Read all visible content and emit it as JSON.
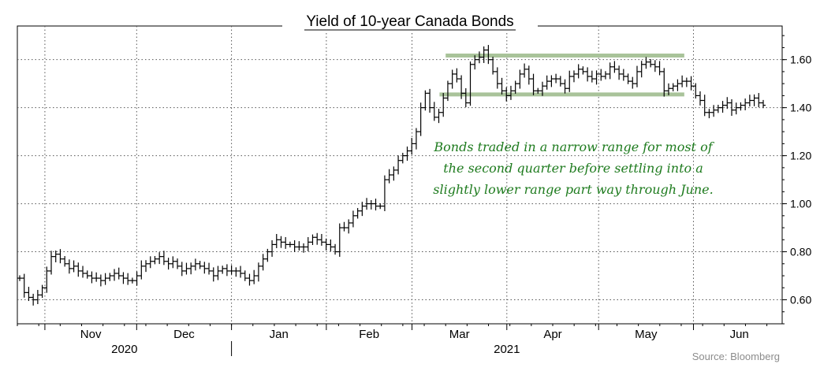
{
  "chart_data": {
    "type": "ohlc",
    "title": "Yield of 10-year Canada Bonds",
    "source": "Source: Bloomberg",
    "y_axis": {
      "position": "right",
      "ylim": [
        0.5,
        1.74
      ],
      "ticks": [
        0.6,
        0.8,
        1.0,
        1.2,
        1.4,
        1.6
      ],
      "tick_labels": [
        "0.60",
        "0.80",
        "1.00",
        "1.20",
        "1.40",
        "1.60"
      ]
    },
    "x_axis": {
      "months": [
        "Nov",
        "Dec",
        "Jan",
        "Feb",
        "Mar",
        "Apr",
        "May",
        "Jun"
      ],
      "years": [
        "2020",
        "2021"
      ],
      "range": [
        "2020-10-23",
        "2021-06-30"
      ]
    },
    "grid": true,
    "annotation": {
      "lines": [
        "Bonds traded in a narrow range for most of",
        "the second quarter before settling into a",
        "slightly lower range part way through June."
      ],
      "range_bands": [
        {
          "y": 1.617,
          "from": "2021-03-12",
          "to": "2021-05-29"
        },
        {
          "y": 1.455,
          "from": "2021-03-10",
          "to": "2021-05-29"
        }
      ]
    },
    "series": [
      {
        "values": [
          [
            0,
            0.69
          ],
          [
            1,
            0.63
          ],
          [
            2,
            0.61
          ],
          [
            3,
            0.6
          ],
          [
            4,
            0.62
          ],
          [
            5,
            0.65
          ],
          [
            6,
            0.72
          ],
          [
            7,
            0.78
          ],
          [
            8,
            0.79
          ],
          [
            9,
            0.77
          ],
          [
            10,
            0.75
          ],
          [
            11,
            0.73
          ],
          [
            12,
            0.74
          ],
          [
            13,
            0.72
          ],
          [
            14,
            0.71
          ],
          [
            15,
            0.7
          ],
          [
            16,
            0.69
          ],
          [
            17,
            0.69
          ],
          [
            18,
            0.68
          ],
          [
            19,
            0.69
          ],
          [
            20,
            0.7
          ],
          [
            21,
            0.71
          ],
          [
            22,
            0.7
          ],
          [
            23,
            0.69
          ],
          [
            24,
            0.68
          ],
          [
            25,
            0.68
          ],
          [
            26,
            0.7
          ],
          [
            27,
            0.74
          ],
          [
            28,
            0.75
          ],
          [
            29,
            0.76
          ],
          [
            30,
            0.77
          ],
          [
            31,
            0.78
          ],
          [
            32,
            0.76
          ],
          [
            33,
            0.75
          ],
          [
            34,
            0.76
          ],
          [
            35,
            0.74
          ],
          [
            36,
            0.72
          ],
          [
            37,
            0.73
          ],
          [
            38,
            0.74
          ],
          [
            39,
            0.75
          ],
          [
            40,
            0.74
          ],
          [
            41,
            0.73
          ],
          [
            42,
            0.72
          ],
          [
            43,
            0.7
          ],
          [
            44,
            0.72
          ],
          [
            45,
            0.73
          ],
          [
            46,
            0.72
          ],
          [
            47,
            0.72
          ],
          [
            48,
            0.72
          ],
          [
            49,
            0.71
          ],
          [
            50,
            0.69
          ],
          [
            51,
            0.68
          ],
          [
            52,
            0.7
          ],
          [
            53,
            0.74
          ],
          [
            54,
            0.77
          ],
          [
            55,
            0.8
          ],
          [
            56,
            0.83
          ],
          [
            57,
            0.85
          ],
          [
            58,
            0.84
          ],
          [
            59,
            0.83
          ],
          [
            60,
            0.83
          ],
          [
            61,
            0.82
          ],
          [
            62,
            0.82
          ],
          [
            63,
            0.82
          ],
          [
            64,
            0.84
          ],
          [
            65,
            0.86
          ],
          [
            66,
            0.85
          ],
          [
            67,
            0.84
          ],
          [
            68,
            0.83
          ],
          [
            69,
            0.82
          ],
          [
            70,
            0.8
          ],
          [
            71,
            0.9
          ],
          [
            72,
            0.9
          ],
          [
            73,
            0.92
          ],
          [
            74,
            0.95
          ],
          [
            75,
            0.97
          ],
          [
            76,
            0.99
          ],
          [
            77,
            1.0
          ],
          [
            78,
            1.0
          ],
          [
            79,
            0.99
          ],
          [
            80,
            0.99
          ],
          [
            81,
            1.1
          ],
          [
            82,
            1.12
          ],
          [
            83,
            1.14
          ],
          [
            84,
            1.18
          ],
          [
            85,
            1.2
          ],
          [
            86,
            1.22
          ],
          [
            87,
            1.25
          ],
          [
            88,
            1.3
          ],
          [
            89,
            1.4
          ],
          [
            90,
            1.46
          ],
          [
            91,
            1.4
          ],
          [
            92,
            1.36
          ],
          [
            93,
            1.38
          ],
          [
            94,
            1.44
          ],
          [
            95,
            1.5
          ],
          [
            96,
            1.54
          ],
          [
            97,
            1.52
          ],
          [
            98,
            1.46
          ],
          [
            99,
            1.42
          ],
          [
            100,
            1.58
          ],
          [
            101,
            1.6
          ],
          [
            102,
            1.61
          ],
          [
            103,
            1.64
          ],
          [
            104,
            1.6
          ],
          [
            105,
            1.55
          ],
          [
            106,
            1.5
          ],
          [
            107,
            1.47
          ],
          [
            108,
            1.45
          ],
          [
            109,
            1.47
          ],
          [
            110,
            1.5
          ],
          [
            111,
            1.54
          ],
          [
            112,
            1.56
          ],
          [
            113,
            1.52
          ],
          [
            114,
            1.47
          ],
          [
            115,
            1.47
          ],
          [
            116,
            1.49
          ],
          [
            117,
            1.51
          ],
          [
            118,
            1.52
          ],
          [
            119,
            1.52
          ],
          [
            120,
            1.5
          ],
          [
            121,
            1.48
          ],
          [
            122,
            1.53
          ],
          [
            123,
            1.54
          ],
          [
            124,
            1.56
          ],
          [
            125,
            1.55
          ],
          [
            126,
            1.53
          ],
          [
            127,
            1.52
          ],
          [
            128,
            1.54
          ],
          [
            129,
            1.53
          ],
          [
            130,
            1.54
          ],
          [
            131,
            1.57
          ],
          [
            132,
            1.56
          ],
          [
            133,
            1.54
          ],
          [
            134,
            1.53
          ],
          [
            135,
            1.51
          ],
          [
            136,
            1.5
          ],
          [
            137,
            1.55
          ],
          [
            138,
            1.58
          ],
          [
            139,
            1.59
          ],
          [
            140,
            1.58
          ],
          [
            141,
            1.57
          ],
          [
            142,
            1.55
          ],
          [
            143,
            1.47
          ],
          [
            144,
            1.48
          ],
          [
            145,
            1.49
          ],
          [
            146,
            1.5
          ],
          [
            147,
            1.51
          ],
          [
            148,
            1.51
          ],
          [
            149,
            1.49
          ],
          [
            150,
            1.45
          ],
          [
            151,
            1.43
          ],
          [
            152,
            1.38
          ],
          [
            153,
            1.38
          ],
          [
            154,
            1.39
          ],
          [
            155,
            1.4
          ],
          [
            156,
            1.41
          ],
          [
            157,
            1.42
          ],
          [
            158,
            1.39
          ],
          [
            159,
            1.4
          ],
          [
            160,
            1.41
          ],
          [
            161,
            1.42
          ],
          [
            162,
            1.43
          ],
          [
            163,
            1.44
          ],
          [
            164,
            1.42
          ],
          [
            165,
            1.41
          ]
        ]
      }
    ]
  }
}
